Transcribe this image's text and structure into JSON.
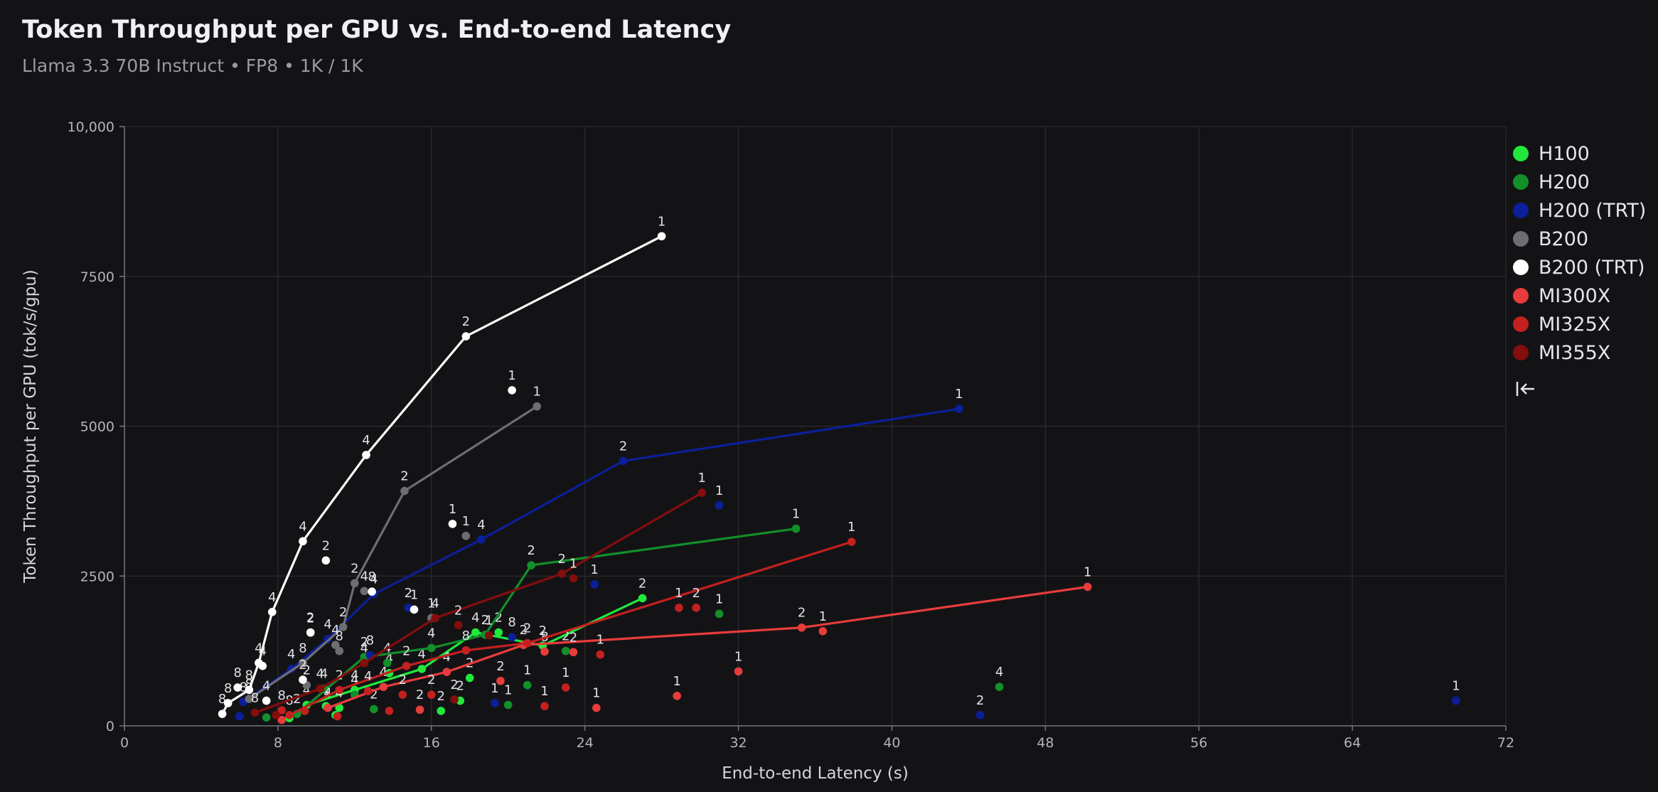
{
  "header": {
    "title": "Token Throughput per GPU vs. End-to-end Latency",
    "subtitle": "Llama 3.3 70B Instruct • FP8 • 1K / 1K"
  },
  "legend_icon": "collapse-left-icon",
  "chart_data": {
    "type": "scatter",
    "title": "Token Throughput per GPU vs. End-to-end Latency",
    "xlabel": "End-to-end Latency (s)",
    "ylabel": "Token Throughput per GPU (tok/s/gpu)",
    "xlim": [
      0,
      72
    ],
    "ylim": [
      0,
      10000
    ],
    "xticks": [
      0,
      8,
      16,
      24,
      32,
      40,
      48,
      56,
      64,
      72
    ],
    "yticks": [
      0,
      2500,
      5000,
      7500,
      10000
    ],
    "ytick_labels": [
      "0",
      "2500",
      "5000",
      "7500",
      "10,000"
    ],
    "grid": true,
    "legend_position": "right",
    "series": [
      {
        "name": "H100",
        "color": "#22e83c",
        "line": [
          [
            9.5,
            350
          ],
          [
            12,
            600
          ],
          [
            15.5,
            950
          ],
          [
            18.3,
            1560
          ],
          [
            21.8,
            1340
          ],
          [
            27,
            2130
          ]
        ],
        "points": [
          [
            9.5,
            350,
            "4"
          ],
          [
            10.5,
            330,
            "4"
          ],
          [
            11.2,
            300,
            "4"
          ],
          [
            12,
            600,
            "4"
          ],
          [
            13.8,
            880,
            "4"
          ],
          [
            15.5,
            950,
            "4"
          ],
          [
            16.5,
            250,
            "2"
          ],
          [
            17.5,
            420,
            "2"
          ],
          [
            18.3,
            1560,
            "4"
          ],
          [
            18,
            800,
            "2"
          ],
          [
            19.5,
            1560,
            "2"
          ],
          [
            21.8,
            1340,
            "2"
          ],
          [
            27,
            2130,
            "2"
          ],
          [
            11,
            180,
            ""
          ],
          [
            8.6,
            130,
            ""
          ]
        ]
      },
      {
        "name": "H200",
        "color": "#12902a",
        "line": [
          [
            9,
            200
          ],
          [
            12.5,
            1150
          ],
          [
            16,
            1300
          ],
          [
            18.8,
            1520
          ],
          [
            21.2,
            2680
          ],
          [
            35,
            3290
          ]
        ],
        "points": [
          [
            9,
            200,
            "2"
          ],
          [
            10.4,
            620,
            "4"
          ],
          [
            12.5,
            1150,
            "2"
          ],
          [
            13.7,
            1050,
            "4"
          ],
          [
            16,
            1300,
            "4"
          ],
          [
            18.8,
            1520,
            "2"
          ],
          [
            21.2,
            2680,
            "2"
          ],
          [
            35,
            3290,
            "1"
          ],
          [
            20,
            350,
            "1"
          ],
          [
            21,
            680,
            "1"
          ],
          [
            23,
            1250,
            "2"
          ],
          [
            31,
            1870,
            "1"
          ],
          [
            45.6,
            650,
            "4"
          ],
          [
            13,
            280,
            "2"
          ],
          [
            7.4,
            140,
            ""
          ],
          [
            12,
            520,
            "4"
          ]
        ]
      },
      {
        "name": "H200 (TRT)",
        "color": "#0b1f9a",
        "line": [
          [
            6.2,
            400
          ],
          [
            8.7,
            950
          ],
          [
            10.6,
            1450
          ],
          [
            13,
            2200
          ],
          [
            18.6,
            3110
          ],
          [
            26,
            4420
          ],
          [
            43.5,
            5290
          ]
        ],
        "points": [
          [
            6.2,
            400,
            "8"
          ],
          [
            8.7,
            950,
            "4"
          ],
          [
            10.6,
            1450,
            "4"
          ],
          [
            13,
            2200,
            "4"
          ],
          [
            18.6,
            3110,
            "4"
          ],
          [
            26,
            4420,
            "2"
          ],
          [
            43.5,
            5290,
            "1"
          ],
          [
            14.8,
            1970,
            "2"
          ],
          [
            24.5,
            2360,
            "1"
          ],
          [
            31,
            3680,
            "1"
          ],
          [
            19.3,
            380,
            "1"
          ],
          [
            20.2,
            1480,
            "8"
          ],
          [
            12.8,
            1180,
            "8"
          ],
          [
            44.6,
            180,
            "2"
          ],
          [
            69.4,
            420,
            "1"
          ],
          [
            6,
            160,
            ""
          ]
        ]
      },
      {
        "name": "B200",
        "color": "#6e6e72",
        "line": [
          [
            6.5,
            450
          ],
          [
            9.3,
            1050
          ],
          [
            11.4,
            1650
          ],
          [
            12,
            2380
          ],
          [
            14.6,
            3920
          ],
          [
            21.5,
            5330
          ]
        ],
        "points": [
          [
            6.5,
            450,
            "8"
          ],
          [
            9.3,
            1050,
            "8"
          ],
          [
            11.4,
            1650,
            "2"
          ],
          [
            12,
            2380,
            "2"
          ],
          [
            14.6,
            3920,
            "2"
          ],
          [
            21.5,
            5330,
            "1"
          ],
          [
            12.5,
            2250,
            "4"
          ],
          [
            9.7,
            1550,
            "2"
          ],
          [
            11,
            1350,
            "4"
          ],
          [
            17.8,
            3170,
            "1"
          ],
          [
            16,
            1800,
            "1"
          ],
          [
            11.2,
            1250,
            "8"
          ],
          [
            9.5,
            680,
            "2"
          ]
        ]
      },
      {
        "name": "B200 (TRT)",
        "color": "#ffffff",
        "line": [
          [
            5.1,
            200
          ],
          [
            5.4,
            380
          ],
          [
            6.5,
            600
          ],
          [
            7,
            1050
          ],
          [
            7.7,
            1900
          ],
          [
            9.3,
            3080
          ],
          [
            12.6,
            4520
          ],
          [
            17.8,
            6500
          ],
          [
            28,
            8170
          ]
        ],
        "points": [
          [
            5.1,
            200,
            "8"
          ],
          [
            5.4,
            380,
            "8"
          ],
          [
            6.5,
            600,
            "8"
          ],
          [
            7,
            1050,
            "4"
          ],
          [
            7.7,
            1900,
            "4"
          ],
          [
            9.3,
            3080,
            "4"
          ],
          [
            12.6,
            4520,
            "4"
          ],
          [
            17.8,
            6500,
            "2"
          ],
          [
            28,
            8170,
            "1"
          ],
          [
            20.2,
            5600,
            "1"
          ],
          [
            17.1,
            3370,
            "1"
          ],
          [
            10.5,
            2760,
            "2"
          ],
          [
            15.1,
            1940,
            "1"
          ],
          [
            12.9,
            2240,
            "8"
          ],
          [
            9.7,
            1560,
            "2"
          ],
          [
            9.3,
            770,
            "2"
          ],
          [
            7.4,
            420,
            "4"
          ],
          [
            5.9,
            640,
            "8"
          ],
          [
            7.2,
            1000,
            "4"
          ]
        ]
      },
      {
        "name": "MI300X",
        "color": "#e83c3c",
        "line": [
          [
            10.6,
            300
          ],
          [
            13.5,
            650
          ],
          [
            16.8,
            900
          ],
          [
            20.8,
            1350
          ],
          [
            35.3,
            1640
          ],
          [
            50.2,
            2320
          ]
        ],
        "points": [
          [
            10.6,
            300,
            "4"
          ],
          [
            13.5,
            650,
            "4"
          ],
          [
            16.8,
            900,
            "4"
          ],
          [
            20.8,
            1350,
            "2"
          ],
          [
            35.3,
            1640,
            "2"
          ],
          [
            50.2,
            2320,
            "1"
          ],
          [
            32,
            910,
            "1"
          ],
          [
            36.4,
            1580,
            "1"
          ],
          [
            28.8,
            500,
            "1"
          ],
          [
            24.6,
            300,
            "1"
          ],
          [
            21.9,
            1240,
            "8"
          ],
          [
            23.4,
            1230,
            "2"
          ],
          [
            19.6,
            750,
            "2"
          ],
          [
            15.4,
            270,
            "2"
          ],
          [
            8.2,
            100,
            ""
          ]
        ]
      },
      {
        "name": "MI325X",
        "color": "#c42020",
        "line": [
          [
            8.6,
            180
          ],
          [
            11.2,
            600
          ],
          [
            14.7,
            1000
          ],
          [
            17.8,
            1260
          ],
          [
            21,
            1380
          ],
          [
            37.9,
            3070
          ]
        ],
        "points": [
          [
            8.6,
            180,
            "8"
          ],
          [
            11.2,
            600,
            "2"
          ],
          [
            14.7,
            1000,
            "2"
          ],
          [
            17.8,
            1260,
            "8"
          ],
          [
            21,
            1380,
            "2"
          ],
          [
            37.9,
            3070,
            "1"
          ],
          [
            28.9,
            1970,
            "1"
          ],
          [
            29.8,
            1970,
            "2"
          ],
          [
            24.8,
            1190,
            "1"
          ],
          [
            23,
            640,
            "1"
          ],
          [
            21.9,
            330,
            "1"
          ],
          [
            14.5,
            520,
            "2"
          ],
          [
            12.7,
            580,
            "4"
          ],
          [
            8.2,
            260,
            "8"
          ],
          [
            16,
            520,
            "2"
          ],
          [
            11.1,
            160,
            ""
          ],
          [
            9.4,
            250,
            ""
          ],
          [
            13.8,
            250,
            ""
          ]
        ]
      },
      {
        "name": "MI355X",
        "color": "#850d0d",
        "line": [
          [
            6.8,
            220
          ],
          [
            10.2,
            620
          ],
          [
            12.5,
            1050
          ],
          [
            16.2,
            1800
          ],
          [
            22.8,
            2540
          ],
          [
            30.1,
            3890
          ]
        ],
        "points": [
          [
            6.8,
            220,
            "8"
          ],
          [
            10.2,
            620,
            "4"
          ],
          [
            12.5,
            1050,
            "4"
          ],
          [
            16.2,
            1800,
            "4"
          ],
          [
            22.8,
            2540,
            "2"
          ],
          [
            30.1,
            3890,
            "1"
          ],
          [
            23.4,
            2460,
            "1"
          ],
          [
            17.4,
            1680,
            "2"
          ],
          [
            19,
            1510,
            "1"
          ],
          [
            17.2,
            440,
            "2"
          ],
          [
            7.9,
            180,
            ""
          ]
        ]
      }
    ]
  }
}
